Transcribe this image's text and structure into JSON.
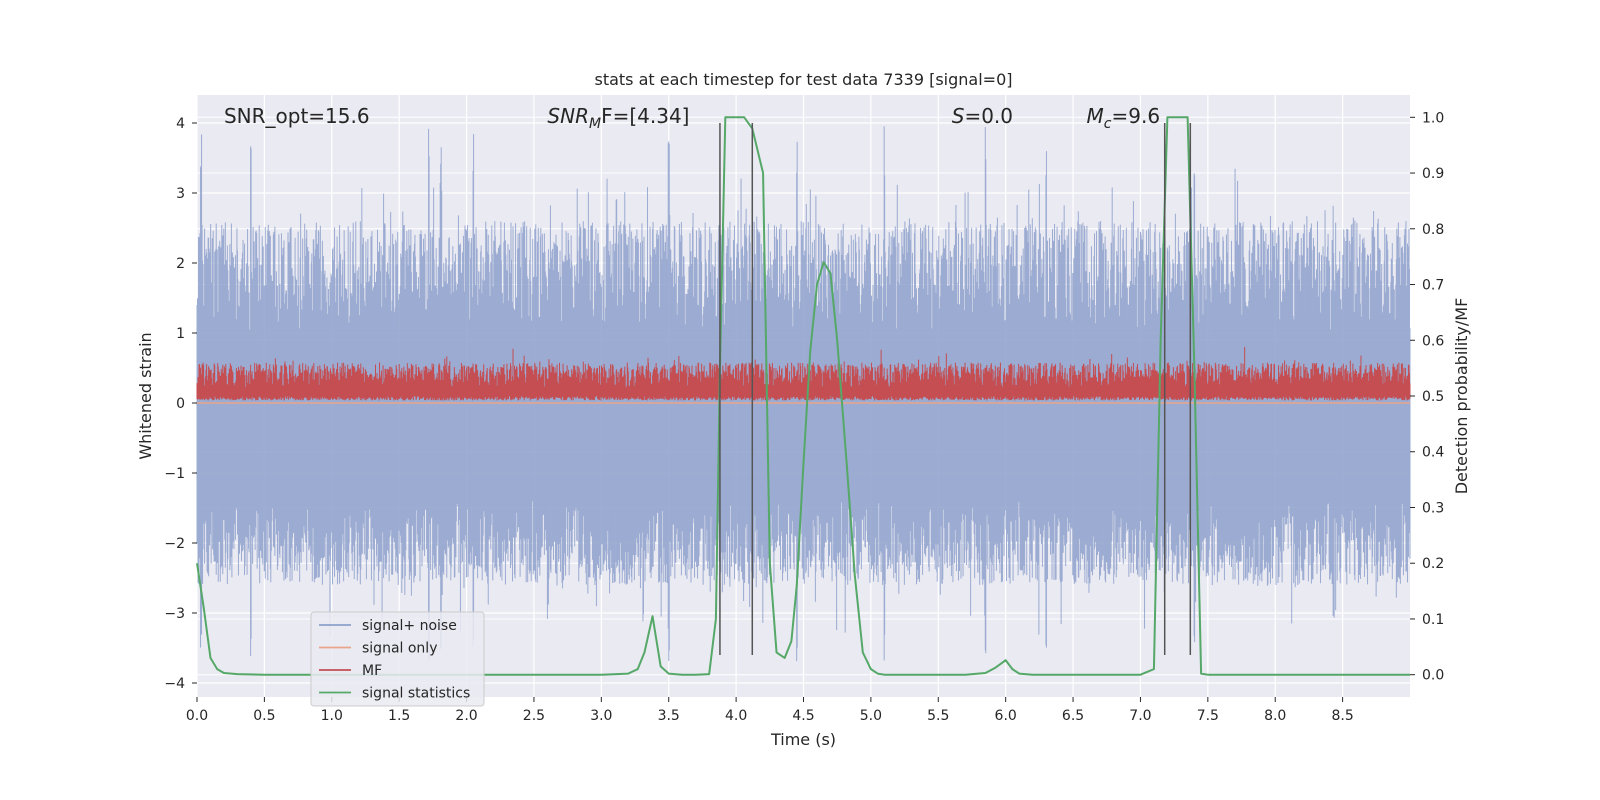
{
  "chart_data": {
    "type": "line",
    "title": "stats at each timestep for test data 7339 [signal=0]",
    "xlabel": "Time (s)",
    "ylabel_left": "Whitened strain",
    "ylabel_right": "Detection probability/MF",
    "xlim": [
      0,
      9
    ],
    "ylim_left": [
      -4.2,
      4.4
    ],
    "ylim_right": [
      -0.04,
      1.04
    ],
    "x_ticks": [
      "0.0",
      "0.5",
      "1.0",
      "1.5",
      "2.0",
      "2.5",
      "3.0",
      "3.5",
      "4.0",
      "4.5",
      "5.0",
      "5.5",
      "6.0",
      "6.5",
      "7.0",
      "7.5",
      "8.0",
      "8.5"
    ],
    "y_ticks_left": [
      "−4",
      "−3",
      "−2",
      "−1",
      "0",
      "1",
      "2",
      "3",
      "4"
    ],
    "y_ticks_right": [
      "0.0",
      "0.1",
      "0.2",
      "0.3",
      "0.4",
      "0.5",
      "0.6",
      "0.7",
      "0.8",
      "0.9",
      "1.0"
    ],
    "grid": true,
    "legend_position": "lower-left",
    "annotations": [
      {
        "text": "SNR_opt=15.6",
        "x": 0.2,
        "y": 4.0
      },
      {
        "text": "SNR",
        "sub": "M",
        "rest": "F=[4.34]",
        "x": 2.6,
        "y": 4.0
      },
      {
        "text": "S",
        "sub": "",
        "rest": "=0.0",
        "x": 5.6,
        "y": 4.0
      },
      {
        "text": "M",
        "sub": "c",
        "rest": "=9.6",
        "x": 6.6,
        "y": 4.0
      }
    ],
    "series": [
      {
        "name": "signal+ noise",
        "color": "#8da0cb",
        "axis": "left",
        "kind": "noise",
        "amplitude_typical": 2.2,
        "amplitude_peak": 4.0
      },
      {
        "name": "signal only",
        "color": "#e8a58a",
        "axis": "left",
        "constant": 0.0
      },
      {
        "name": "MF",
        "color": "#c44e52",
        "axis": "right",
        "kind": "noise",
        "range": [
          0.5,
          0.6
        ]
      },
      {
        "name": "signal statistics",
        "color": "#55a868",
        "axis": "right",
        "x": [
          0.0,
          0.05,
          0.1,
          0.15,
          0.2,
          0.3,
          0.5,
          1.0,
          2.0,
          3.0,
          3.2,
          3.27,
          3.32,
          3.38,
          3.44,
          3.5,
          3.6,
          3.7,
          3.8,
          3.85,
          3.88,
          3.92,
          3.96,
          4.0,
          4.06,
          4.12,
          4.15,
          4.2,
          4.25,
          4.3,
          4.36,
          4.41,
          4.45,
          4.5,
          4.55,
          4.6,
          4.65,
          4.7,
          4.75,
          4.82,
          4.88,
          4.94,
          5.0,
          5.05,
          5.1,
          5.2,
          5.5,
          5.7,
          5.85,
          5.92,
          6.0,
          6.05,
          6.1,
          6.2,
          6.5,
          7.0,
          7.1,
          7.15,
          7.2,
          7.25,
          7.3,
          7.35,
          7.4,
          7.45,
          7.5,
          7.6,
          8.0,
          8.5,
          9.0
        ],
        "y": [
          0.2,
          0.12,
          0.03,
          0.01,
          0.003,
          0.001,
          0.0,
          0.0,
          0.0,
          0.0,
          0.002,
          0.01,
          0.04,
          0.105,
          0.015,
          0.002,
          0.0,
          0.0,
          0.001,
          0.1,
          0.55,
          1.0,
          1.0,
          1.0,
          1.0,
          0.98,
          0.95,
          0.9,
          0.2,
          0.04,
          0.03,
          0.06,
          0.16,
          0.38,
          0.58,
          0.7,
          0.74,
          0.72,
          0.6,
          0.38,
          0.18,
          0.04,
          0.01,
          0.002,
          0.0,
          0.0,
          0.0,
          0.0,
          0.003,
          0.012,
          0.026,
          0.01,
          0.002,
          0.0,
          0.0,
          0.0,
          0.01,
          0.6,
          1.0,
          1.0,
          1.0,
          1.0,
          0.55,
          0.002,
          0.0,
          0.0,
          0.0,
          0.0,
          0.0
        ]
      },
      {
        "name": "event markers",
        "color": "#555555",
        "kind": "vlines",
        "x": [
          3.88,
          4.12,
          7.18,
          7.37
        ],
        "y_range_left": [
          -3.6,
          4.0
        ]
      }
    ]
  },
  "legend": {
    "items": [
      {
        "label": "signal+ noise",
        "color": "#8da0cb"
      },
      {
        "label": "signal only",
        "color": "#e8a58a"
      },
      {
        "label": "MF",
        "color": "#c44e52"
      },
      {
        "label": "signal statistics",
        "color": "#55a868"
      }
    ]
  }
}
